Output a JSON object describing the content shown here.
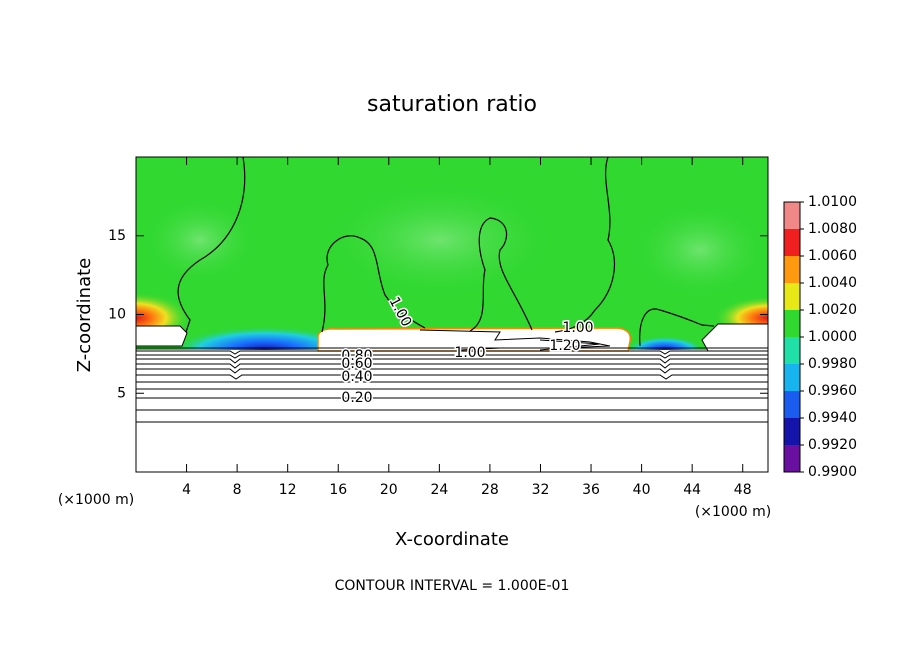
{
  "chart_data": {
    "type": "contour",
    "title": "saturation ratio",
    "x_label": "X-coordinate",
    "y_label": "Z-coordinate",
    "x_unit_labels": [
      "(×1000 m)",
      "(×1000 m)"
    ],
    "xlim": [
      0,
      50
    ],
    "xticks": [
      4,
      8,
      12,
      16,
      20,
      24,
      28,
      32,
      36,
      40,
      44,
      48
    ],
    "ylim": [
      0,
      20
    ],
    "yticks": [
      5,
      10,
      15
    ],
    "colorbar": {
      "lim": [
        0.99,
        1.01
      ],
      "ticks": [
        {
          "value": 0.99,
          "label": "0.9900"
        },
        {
          "value": 0.992,
          "label": "0.9920"
        },
        {
          "value": 0.994,
          "label": "0.9940"
        },
        {
          "value": 0.996,
          "label": "0.9960"
        },
        {
          "value": 0.998,
          "label": "0.9980"
        },
        {
          "value": 1.0,
          "label": "1.0000"
        },
        {
          "value": 1.002,
          "label": "1.0020"
        },
        {
          "value": 1.004,
          "label": "1.0040"
        },
        {
          "value": 1.006,
          "label": "1.0060"
        },
        {
          "value": 1.008,
          "label": "1.0080"
        },
        {
          "value": 1.01,
          "label": "1.0100"
        }
      ],
      "colors": [
        "#6a10a0",
        "#1414aa",
        "#1a5cf0",
        "#18b4f0",
        "#20e0a8",
        "#30d830",
        "#e8e818",
        "#ff9a10",
        "#f02020",
        "#f08888"
      ]
    },
    "contour_labels": [
      "1.00",
      "1.00",
      "1.00",
      "1.20",
      "0.80",
      "0.60",
      "0.40",
      "0.20"
    ],
    "annotation": "CONTOUR INTERVAL = 1.000E-01"
  }
}
